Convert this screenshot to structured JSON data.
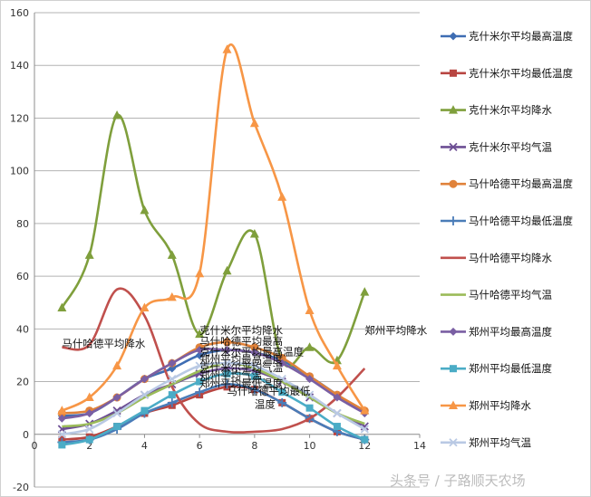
{
  "chart_data": {
    "type": "line",
    "title": "",
    "xlabel": "",
    "ylabel": "",
    "xlim": [
      0,
      14
    ],
    "ylim": [
      -20,
      160
    ],
    "x_ticks": [
      0,
      2,
      4,
      6,
      8,
      10,
      12,
      14
    ],
    "y_ticks": [
      -20,
      0,
      20,
      40,
      60,
      80,
      100,
      120,
      140,
      160
    ],
    "grid": "horizontal",
    "legend_position": "right",
    "x": [
      1,
      2,
      3,
      4,
      5,
      6,
      7,
      8,
      9,
      10,
      11,
      12
    ],
    "series": [
      {
        "name": "克什米尔平均最高温度",
        "color": "#3e6db3",
        "marker": "diamond",
        "values": [
          7,
          8,
          14,
          21,
          25,
          30,
          32,
          31,
          28,
          22,
          15,
          8
        ]
      },
      {
        "name": "克什米尔平均最低温度",
        "color": "#b84541",
        "marker": "square",
        "values": [
          -2,
          -1,
          3,
          8,
          11,
          15,
          18,
          17,
          12,
          6,
          1,
          -2
        ]
      },
      {
        "name": "克什米尔平均降水",
        "color": "#7f9f3c",
        "marker": "triangle",
        "values": [
          48,
          68,
          121,
          85,
          68,
          38,
          62,
          76,
          28,
          33,
          28,
          54
        ]
      },
      {
        "name": "克什米尔平均气温",
        "color": "#6d4f94",
        "marker": "x",
        "values": [
          2,
          4,
          9,
          15,
          19,
          23,
          25,
          24,
          20,
          14,
          8,
          3
        ]
      },
      {
        "name": "马什哈德平均最高温度",
        "color": "#e0823a",
        "marker": "circle",
        "values": [
          8,
          9,
          14,
          21,
          27,
          33,
          35,
          33,
          29,
          22,
          15,
          9
        ]
      },
      {
        "name": "马什哈德平均最低温度",
        "color": "#4a7cb8",
        "marker": "plus",
        "values": [
          -3,
          -2,
          2,
          8,
          12,
          16,
          19,
          17,
          12,
          6,
          1,
          -2
        ]
      },
      {
        "name": "马什哈德平均降水",
        "color": "#c0504d",
        "marker": "line",
        "values": [
          33,
          34,
          55,
          45,
          18,
          4,
          1,
          1,
          2,
          6,
          14,
          25
        ]
      },
      {
        "name": "马什哈德平均气温",
        "color": "#9bbb59",
        "marker": "line",
        "values": [
          3,
          4,
          8,
          14,
          19,
          24,
          27,
          25,
          20,
          14,
          8,
          4
        ]
      },
      {
        "name": "郑州平均最高温度",
        "color": "#7a5fa3",
        "marker": "diamond",
        "values": [
          6,
          8,
          14,
          21,
          27,
          32,
          32,
          31,
          27,
          21,
          14,
          8
        ]
      },
      {
        "name": "郑州平均最低温度",
        "color": "#4bacc6",
        "marker": "square",
        "values": [
          -4,
          -2,
          3,
          9,
          15,
          20,
          23,
          22,
          16,
          10,
          3,
          -2
        ]
      },
      {
        "name": "郑州平均降水",
        "color": "#f79646",
        "marker": "triangle",
        "values": [
          9,
          14,
          26,
          48,
          52,
          61,
          146,
          118,
          90,
          47,
          26,
          9
        ]
      },
      {
        "name": "郑州平均气温",
        "color": "#b9c9e4",
        "marker": "x",
        "values": [
          0,
          2,
          8,
          15,
          21,
          26,
          27,
          26,
          21,
          15,
          8,
          2
        ]
      }
    ],
    "annotations": [
      {
        "text": "马什哈德平均降水",
        "x": 1,
        "y": 33
      },
      {
        "text": "克什米尔平均降水",
        "x": 6,
        "y": 38
      },
      {
        "text": "郑州平均降水",
        "x": 12,
        "y": 38
      },
      {
        "text": "马什哈德平均最高",
        "x": 6,
        "y": 34
      },
      {
        "text": "克什米尔平均最高温度",
        "x": 6,
        "y": 30
      },
      {
        "text": "郑州平均最高温度",
        "x": 6,
        "y": 27
      },
      {
        "text": "克什米尔平均气温",
        "x": 6,
        "y": 24
      },
      {
        "text": "郑州平均气温",
        "x": 6,
        "y": 21
      },
      {
        "text": "郑州平均最低温度",
        "x": 6,
        "y": 18
      },
      {
        "text": "马什哈德平均最低",
        "x": 7,
        "y": 15
      },
      {
        "text": "温度",
        "x": 8,
        "y": 10
      }
    ]
  },
  "watermark": "头条号 / 子路顺天农场"
}
